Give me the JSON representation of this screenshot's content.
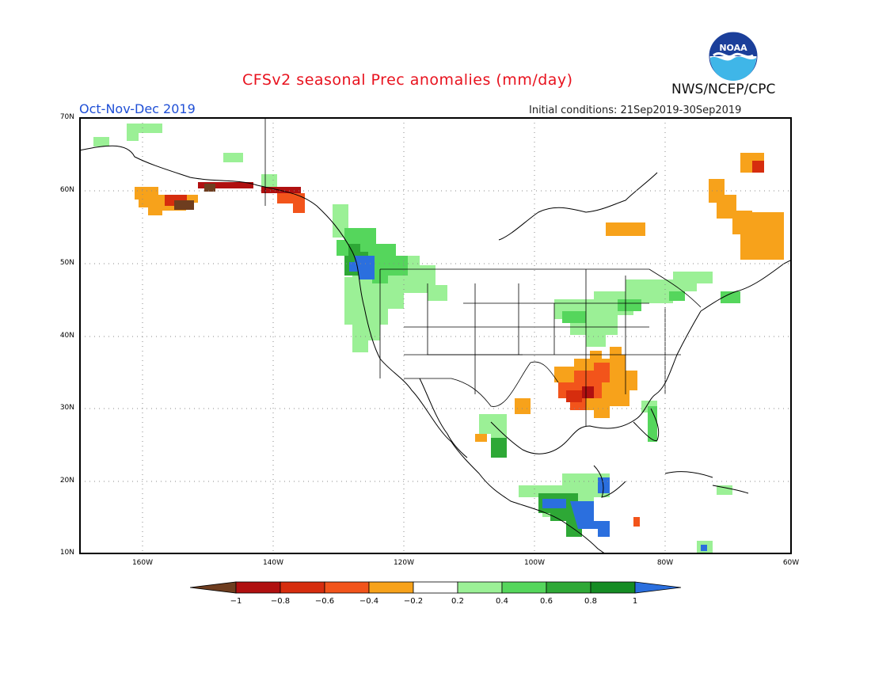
{
  "header": {
    "title": "CFSv2 seasonal Prec anomalies (mm/day)",
    "season": "Oct-Nov-Dec 2019",
    "initial_conditions": "Initial conditions: 21Sep2019-30Sep2019",
    "agency": "NWS/NCEP/CPC",
    "logo_text": "NOAA"
  },
  "map": {
    "lat_labels": [
      "70N",
      "60N",
      "50N",
      "40N",
      "30N",
      "20N",
      "10N"
    ],
    "lon_labels": [
      "160W",
      "140W",
      "120W",
      "100W",
      "80W",
      "60W"
    ]
  },
  "legend": {
    "labels": [
      "-1",
      "-0.8",
      "-0.6",
      "-0.4",
      "-0.2",
      "0.2",
      "0.4",
      "0.6",
      "0.8",
      "1"
    ],
    "colors": [
      "#6e3d1f",
      "#b01010",
      "#d62d0e",
      "#f2541b",
      "#f7a21b",
      "#ffffff",
      "#9bf096",
      "#55d65c",
      "#2ea836",
      "#158c24",
      "#2b6fde"
    ]
  }
}
